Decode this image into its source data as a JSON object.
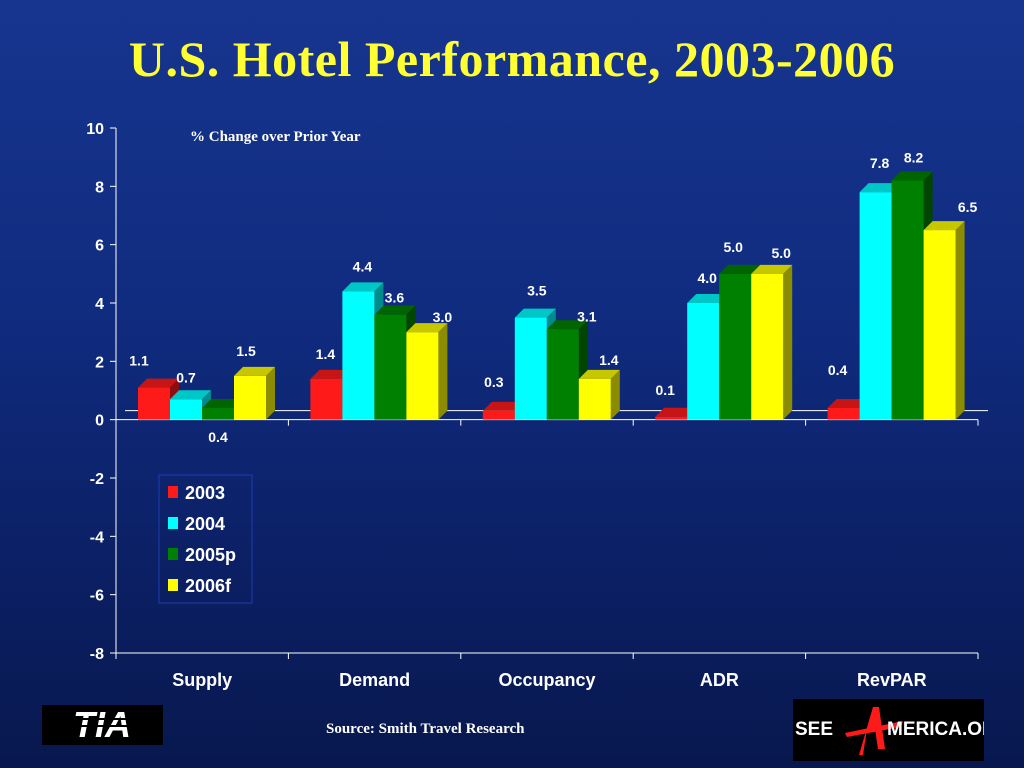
{
  "title": "U.S. Hotel Performance, 2003-2006",
  "source": "Source:  Smith Travel Research",
  "logos": {
    "tia": {
      "text": "TIA"
    },
    "see_america": {
      "text_left": "SEE",
      "text_right": "MERICA.ORG"
    }
  },
  "colors": {
    "background": "#102c80",
    "title": "#ffff33",
    "series": {
      "2003": "#ff1a1a",
      "2004": "#00ffff",
      "2005p": "#008000",
      "2006f": "#ffff00"
    }
  },
  "chart_data": {
    "type": "bar",
    "subtitle": "% Change over Prior Year",
    "categories": [
      "Supply",
      "Demand",
      "Occupancy",
      "ADR",
      "RevPAR"
    ],
    "series": [
      {
        "name": "2003",
        "values": [
          1.1,
          1.4,
          0.3,
          0.1,
          0.4
        ]
      },
      {
        "name": "2004",
        "values": [
          0.7,
          4.4,
          3.5,
          4.0,
          7.8
        ]
      },
      {
        "name": "2005p",
        "values": [
          0.4,
          3.6,
          3.1,
          5.0,
          8.2
        ]
      },
      {
        "name": "2006f",
        "values": [
          1.5,
          3.0,
          1.4,
          5.0,
          6.5
        ]
      }
    ],
    "ylim": [
      -8,
      10
    ],
    "yticks": [
      10,
      8,
      6,
      4,
      2,
      0,
      -2,
      -4,
      -6,
      -8
    ],
    "grid": false,
    "legend": "lower-left",
    "xlabel": "",
    "ylabel": ""
  }
}
